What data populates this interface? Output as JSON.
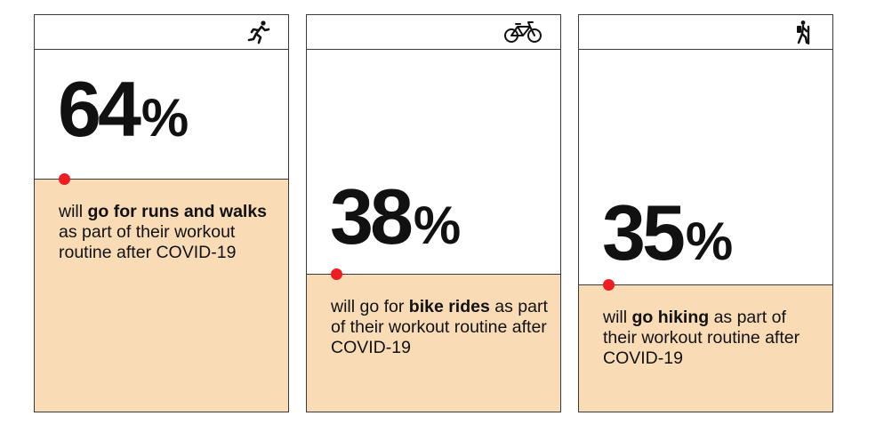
{
  "chart_data": {
    "type": "bar",
    "categories": [
      "go for runs and walks",
      "bike rides",
      "go hiking"
    ],
    "values": [
      64,
      38,
      35
    ],
    "unit": "%",
    "ylim": [
      0,
      100
    ],
    "fill_color": "#f9dcb6",
    "marker_color": "#ee1d23"
  },
  "cards": [
    {
      "icon": "runner-icon",
      "value": 64,
      "number": "64",
      "percent_sign": "%",
      "caption_pre": "will ",
      "caption_bold": "go for runs and walks",
      "caption_post": " as part of their workout routine after COVID-19"
    },
    {
      "icon": "bicycle-icon",
      "value": 38,
      "number": "38",
      "percent_sign": "%",
      "caption_pre": "will go for ",
      "caption_bold": "bike rides",
      "caption_post": " as part of their workout routine after COVID-19"
    },
    {
      "icon": "hiker-icon",
      "value": 35,
      "number": "35",
      "percent_sign": "%",
      "caption_pre": "will ",
      "caption_bold": "go hiking",
      "caption_post": " as part of their workout routine after COVID-19"
    }
  ]
}
